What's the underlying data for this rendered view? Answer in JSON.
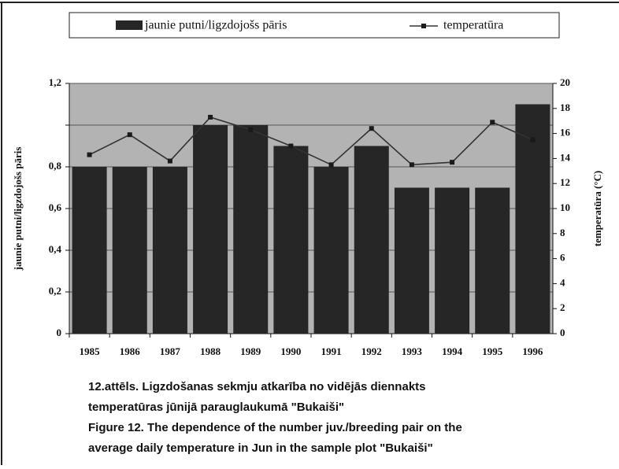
{
  "chart_data": {
    "type": "bar_line",
    "categories": [
      "1985",
      "1986",
      "1987",
      "1988",
      "1989",
      "1990",
      "1991",
      "1992",
      "1993",
      "1994",
      "1995",
      "1996"
    ],
    "series": [
      {
        "name": "jaunie putni/ligzdojošs pāris",
        "color": "#262626",
        "type": "bar",
        "values": [
          0.8,
          0.8,
          0.8,
          1.0,
          1.0,
          0.9,
          0.8,
          0.9,
          0.7,
          0.7,
          0.7,
          1.1
        ]
      },
      {
        "name": "temperatūra",
        "color": "#1a1a1a",
        "type": "line",
        "axis": "y2",
        "values": [
          14.3,
          15.9,
          13.8,
          17.3,
          16.3,
          15.0,
          13.5,
          16.4,
          13.5,
          13.7,
          16.9,
          15.5
        ]
      }
    ],
    "ylabel": "jaunie putni/ligzdojošs pāris",
    "y2label": "temperatūra (°C)",
    "ylim": [
      0,
      1.2
    ],
    "yticks": [
      0,
      {
        "value": 0.2,
        "label": "0,2"
      },
      {
        "value": 0.4,
        "label": "0,4"
      },
      {
        "value": 0.6,
        "label": "0,6"
      },
      {
        "value": 0.8,
        "label": "0,8"
      },
      {
        "value": 1.0,
        "label": null
      },
      {
        "value": 1.2,
        "label": "1,2"
      }
    ],
    "y2lim": [
      0,
      20
    ],
    "y2ticks": [
      0,
      2,
      4,
      6,
      8,
      10,
      12,
      14,
      16,
      18,
      20
    ],
    "grid": true,
    "legend": "top",
    "caption": [
      "12.attēls. Ligzdošanas sekmju atkarība no vidējās diennakts",
      "temperatūras jūnijā parauglaukumā \"Bukaiši\"",
      "Figure 12. The dependence of the number juv./breeding pair on the",
      "average daily temperature in Jun in the sample plot \"Bukaiši\""
    ]
  }
}
